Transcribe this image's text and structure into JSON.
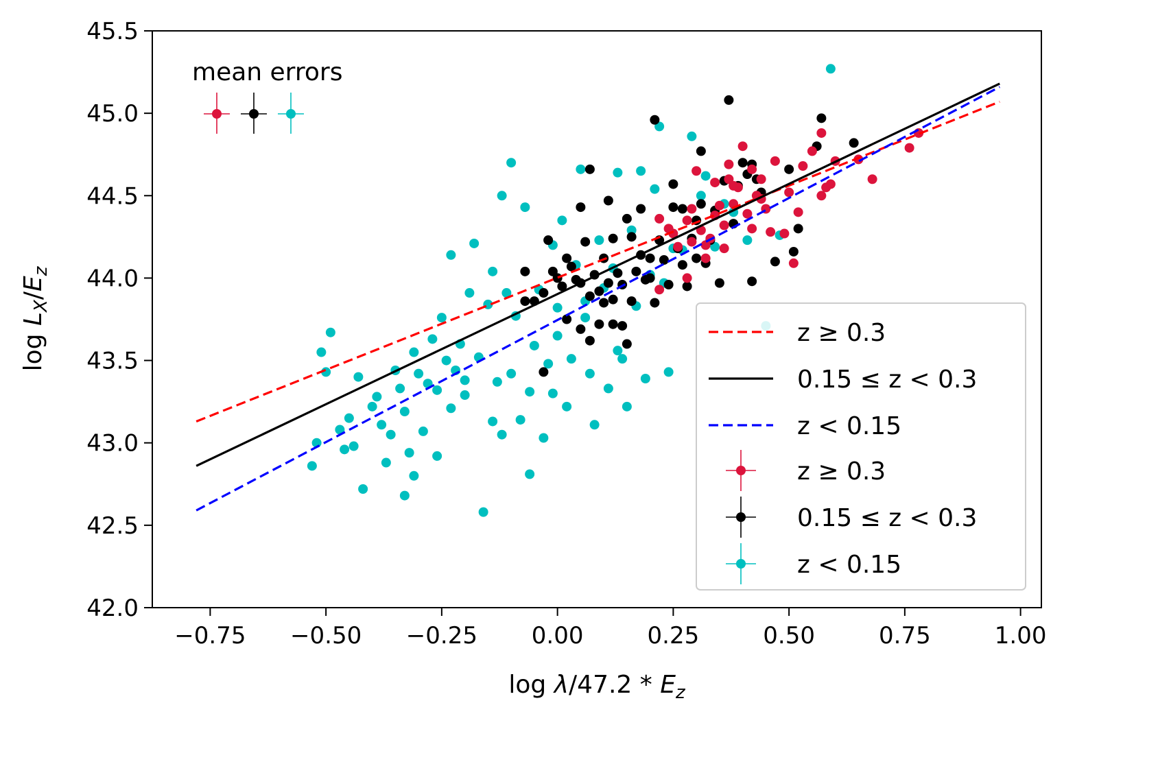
{
  "chart_data": {
    "type": "scatter",
    "xlabel": "log λ/47.2 * E_z",
    "ylabel": "log L_X/E_z",
    "xlim": [
      -0.875,
      1.045
    ],
    "ylim": [
      42.0,
      45.5
    ],
    "xticks": [
      -0.75,
      -0.5,
      -0.25,
      0.0,
      0.25,
      0.5,
      0.75,
      1.0
    ],
    "xtick_labels": [
      "−0.75",
      "−0.50",
      "−0.25",
      "0.00",
      "0.25",
      "0.50",
      "0.75",
      "1.00"
    ],
    "yticks": [
      42.0,
      42.5,
      43.0,
      43.5,
      44.0,
      44.5,
      45.0,
      45.5
    ],
    "ytick_labels": [
      "42.0",
      "42.5",
      "43.0",
      "43.5",
      "44.0",
      "44.5",
      "45.0",
      "45.5"
    ],
    "grid": false,
    "legend_position": "lower-right",
    "annotation": "mean errors",
    "fit_lines": [
      {
        "name": "z ≥ 0.3",
        "color": "#ff0000",
        "style": "dashed",
        "x": [
          -0.78,
          0.955
        ],
        "y": [
          43.13,
          45.07
        ]
      },
      {
        "name": "0.15 ≤ z < 0.3",
        "color": "#000000",
        "style": "solid",
        "x": [
          -0.78,
          0.955
        ],
        "y": [
          42.86,
          45.18
        ]
      },
      {
        "name": "z < 0.15",
        "color": "#0000ff",
        "style": "dashed",
        "x": [
          -0.78,
          0.955
        ],
        "y": [
          42.59,
          45.16
        ]
      }
    ],
    "series": [
      {
        "name": "z ≥ 0.3",
        "color": "#dc143c",
        "points": [
          [
            0.22,
            44.36
          ],
          [
            0.24,
            44.3
          ],
          [
            0.26,
            44.19
          ],
          [
            0.28,
            44.35
          ],
          [
            0.29,
            44.42
          ],
          [
            0.3,
            44.65
          ],
          [
            0.31,
            44.29
          ],
          [
            0.32,
            44.2
          ],
          [
            0.33,
            44.24
          ],
          [
            0.34,
            44.58
          ],
          [
            0.35,
            44.44
          ],
          [
            0.36,
            44.32
          ],
          [
            0.37,
            44.69
          ],
          [
            0.37,
            44.6
          ],
          [
            0.38,
            44.45
          ],
          [
            0.39,
            44.55
          ],
          [
            0.4,
            44.8
          ],
          [
            0.41,
            44.39
          ],
          [
            0.42,
            44.66
          ],
          [
            0.43,
            44.5
          ],
          [
            0.44,
            44.48
          ],
          [
            0.45,
            44.42
          ],
          [
            0.46,
            44.28
          ],
          [
            0.47,
            44.71
          ],
          [
            0.49,
            44.27
          ],
          [
            0.5,
            44.52
          ],
          [
            0.51,
            44.09
          ],
          [
            0.52,
            44.4
          ],
          [
            0.55,
            44.77
          ],
          [
            0.57,
            44.88
          ],
          [
            0.58,
            44.55
          ],
          [
            0.59,
            44.57
          ],
          [
            0.6,
            44.71
          ],
          [
            0.65,
            44.72
          ],
          [
            0.68,
            44.6
          ],
          [
            0.76,
            44.79
          ],
          [
            0.78,
            44.88
          ],
          [
            0.22,
            43.93
          ],
          [
            0.28,
            44.0
          ],
          [
            0.32,
            44.12
          ],
          [
            0.36,
            44.18
          ],
          [
            0.42,
            44.3
          ],
          [
            0.38,
            44.56
          ],
          [
            0.53,
            44.68
          ],
          [
            0.29,
            44.22
          ],
          [
            0.57,
            44.5
          ],
          [
            0.44,
            44.6
          ],
          [
            0.34,
            44.38
          ],
          [
            0.25,
            44.27
          ]
        ]
      },
      {
        "name": "0.15 ≤ z < 0.3",
        "color": "#000000",
        "points": [
          [
            -0.07,
            44.04
          ],
          [
            -0.07,
            43.86
          ],
          [
            -0.05,
            43.86
          ],
          [
            -0.03,
            43.91
          ],
          [
            -0.02,
            44.23
          ],
          [
            -0.01,
            44.04
          ],
          [
            0.0,
            44.0
          ],
          [
            0.01,
            43.95
          ],
          [
            0.02,
            44.12
          ],
          [
            0.02,
            43.75
          ],
          [
            0.03,
            44.07
          ],
          [
            0.04,
            43.99
          ],
          [
            0.05,
            44.43
          ],
          [
            0.05,
            43.97
          ],
          [
            0.06,
            44.22
          ],
          [
            0.07,
            44.66
          ],
          [
            0.07,
            43.89
          ],
          [
            0.07,
            43.62
          ],
          [
            0.08,
            44.02
          ],
          [
            0.09,
            43.92
          ],
          [
            0.09,
            43.72
          ],
          [
            0.1,
            44.12
          ],
          [
            0.1,
            43.85
          ],
          [
            0.11,
            44.47
          ],
          [
            0.11,
            43.97
          ],
          [
            0.12,
            44.24
          ],
          [
            0.12,
            43.72
          ],
          [
            0.13,
            44.03
          ],
          [
            0.14,
            43.96
          ],
          [
            0.14,
            43.71
          ],
          [
            0.15,
            44.36
          ],
          [
            0.15,
            43.6
          ],
          [
            0.16,
            44.25
          ],
          [
            0.16,
            43.86
          ],
          [
            0.17,
            44.04
          ],
          [
            0.18,
            44.42
          ],
          [
            0.18,
            44.14
          ],
          [
            0.19,
            43.99
          ],
          [
            0.2,
            44.12
          ],
          [
            0.21,
            44.96
          ],
          [
            0.21,
            43.85
          ],
          [
            0.22,
            44.23
          ],
          [
            0.23,
            44.11
          ],
          [
            0.24,
            43.96
          ],
          [
            0.25,
            44.43
          ],
          [
            0.25,
            44.57
          ],
          [
            0.26,
            44.18
          ],
          [
            0.27,
            44.08
          ],
          [
            0.28,
            43.95
          ],
          [
            0.29,
            44.24
          ],
          [
            0.3,
            44.35
          ],
          [
            0.31,
            44.77
          ],
          [
            0.31,
            44.45
          ],
          [
            0.32,
            44.09
          ],
          [
            0.33,
            44.23
          ],
          [
            0.34,
            44.41
          ],
          [
            0.35,
            43.97
          ],
          [
            0.37,
            45.08
          ],
          [
            0.38,
            44.33
          ],
          [
            0.39,
            44.56
          ],
          [
            0.4,
            44.7
          ],
          [
            0.41,
            44.63
          ],
          [
            0.42,
            44.69
          ],
          [
            0.42,
            43.98
          ],
          [
            0.44,
            44.52
          ],
          [
            0.47,
            44.1
          ],
          [
            0.5,
            44.66
          ],
          [
            0.51,
            44.16
          ],
          [
            0.52,
            44.3
          ],
          [
            0.56,
            44.8
          ],
          [
            0.57,
            44.97
          ],
          [
            0.64,
            44.82
          ],
          [
            -0.03,
            43.43
          ],
          [
            0.05,
            43.69
          ],
          [
            0.12,
            43.87
          ],
          [
            0.2,
            44.0
          ],
          [
            0.27,
            44.42
          ],
          [
            0.3,
            44.12
          ],
          [
            0.36,
            44.59
          ],
          [
            0.43,
            44.6
          ]
        ]
      },
      {
        "name": "z < 0.15",
        "color": "#00bfbf",
        "points": [
          [
            -0.53,
            42.86
          ],
          [
            -0.52,
            43.0
          ],
          [
            -0.51,
            43.55
          ],
          [
            -0.5,
            43.43
          ],
          [
            -0.49,
            43.67
          ],
          [
            -0.47,
            43.08
          ],
          [
            -0.46,
            42.96
          ],
          [
            -0.45,
            43.15
          ],
          [
            -0.43,
            43.4
          ],
          [
            -0.42,
            42.72
          ],
          [
            -0.4,
            43.22
          ],
          [
            -0.39,
            43.28
          ],
          [
            -0.38,
            43.11
          ],
          [
            -0.37,
            42.88
          ],
          [
            -0.36,
            43.05
          ],
          [
            -0.35,
            43.44
          ],
          [
            -0.34,
            43.33
          ],
          [
            -0.33,
            43.19
          ],
          [
            -0.32,
            42.94
          ],
          [
            -0.31,
            42.8
          ],
          [
            -0.31,
            43.55
          ],
          [
            -0.3,
            43.42
          ],
          [
            -0.29,
            43.07
          ],
          [
            -0.28,
            43.36
          ],
          [
            -0.27,
            43.63
          ],
          [
            -0.26,
            42.92
          ],
          [
            -0.26,
            43.32
          ],
          [
            -0.25,
            43.76
          ],
          [
            -0.24,
            43.5
          ],
          [
            -0.23,
            43.21
          ],
          [
            -0.23,
            44.14
          ],
          [
            -0.22,
            43.44
          ],
          [
            -0.21,
            43.6
          ],
          [
            -0.2,
            43.29
          ],
          [
            -0.19,
            43.91
          ],
          [
            -0.18,
            44.21
          ],
          [
            -0.17,
            43.52
          ],
          [
            -0.16,
            42.58
          ],
          [
            -0.15,
            43.84
          ],
          [
            -0.14,
            43.13
          ],
          [
            -0.14,
            44.04
          ],
          [
            -0.13,
            43.37
          ],
          [
            -0.12,
            44.5
          ],
          [
            -0.11,
            43.91
          ],
          [
            -0.1,
            44.7
          ],
          [
            -0.1,
            43.42
          ],
          [
            -0.09,
            43.77
          ],
          [
            -0.08,
            43.14
          ],
          [
            -0.07,
            44.43
          ],
          [
            -0.06,
            43.31
          ],
          [
            -0.06,
            42.81
          ],
          [
            -0.05,
            43.59
          ],
          [
            -0.04,
            43.93
          ],
          [
            -0.03,
            43.03
          ],
          [
            -0.02,
            43.48
          ],
          [
            -0.01,
            44.2
          ],
          [
            0.0,
            43.65
          ],
          [
            0.01,
            44.35
          ],
          [
            0.02,
            43.22
          ],
          [
            0.03,
            43.51
          ],
          [
            0.04,
            44.08
          ],
          [
            0.05,
            44.66
          ],
          [
            0.06,
            43.76
          ],
          [
            0.07,
            43.42
          ],
          [
            0.08,
            43.11
          ],
          [
            0.09,
            44.23
          ],
          [
            0.1,
            43.94
          ],
          [
            0.11,
            43.33
          ],
          [
            0.12,
            44.06
          ],
          [
            0.13,
            44.64
          ],
          [
            0.14,
            43.51
          ],
          [
            0.15,
            43.22
          ],
          [
            0.16,
            44.29
          ],
          [
            0.17,
            43.83
          ],
          [
            0.18,
            44.65
          ],
          [
            0.19,
            43.39
          ],
          [
            0.2,
            44.02
          ],
          [
            0.21,
            44.54
          ],
          [
            0.22,
            44.92
          ],
          [
            0.23,
            43.97
          ],
          [
            0.24,
            43.43
          ],
          [
            0.25,
            44.18
          ],
          [
            0.27,
            44.17
          ],
          [
            0.29,
            44.86
          ],
          [
            0.31,
            44.5
          ],
          [
            0.32,
            44.62
          ],
          [
            0.34,
            44.19
          ],
          [
            0.36,
            44.45
          ],
          [
            0.38,
            44.4
          ],
          [
            0.41,
            44.23
          ],
          [
            0.45,
            43.71
          ],
          [
            0.48,
            44.26
          ],
          [
            0.59,
            45.27
          ],
          [
            -0.44,
            42.98
          ],
          [
            -0.33,
            42.68
          ],
          [
            -0.12,
            43.05
          ],
          [
            -0.01,
            43.3
          ],
          [
            0.06,
            43.86
          ],
          [
            0.13,
            43.56
          ],
          [
            0.0,
            43.82
          ],
          [
            -0.2,
            43.38
          ]
        ]
      }
    ],
    "legend": [
      "z ≥ 0.3",
      "0.15 ≤ z < 0.3",
      "z < 0.15",
      "z ≥ 0.3",
      "0.15 ≤ z < 0.3",
      "z < 0.15"
    ]
  }
}
